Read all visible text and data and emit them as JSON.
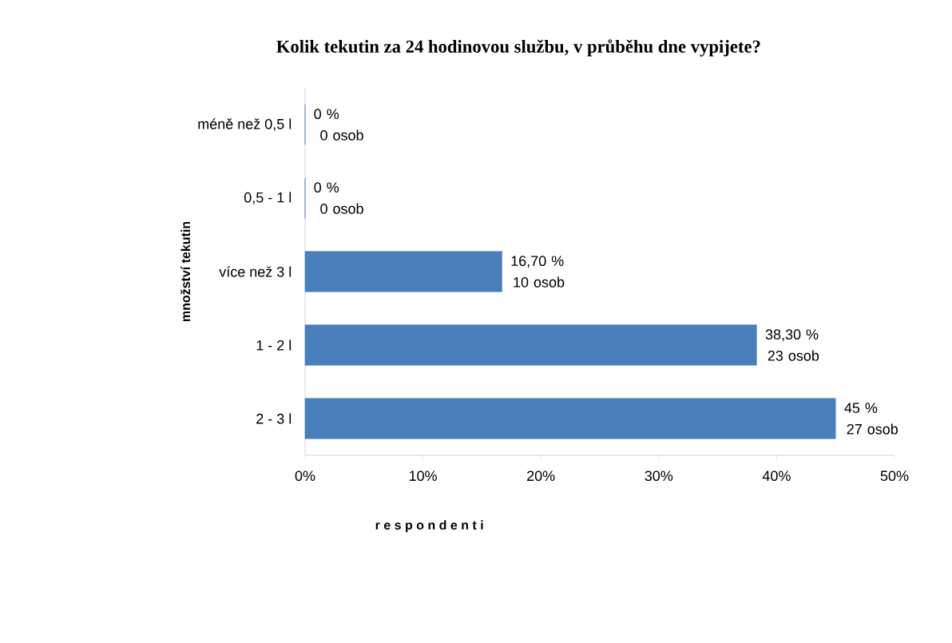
{
  "chart_data": {
    "type": "bar",
    "orientation": "horizontal",
    "title": "Kolik tekutin za 24 hodinovou službu, v průběhu dne vypijete?",
    "xlabel": "r e s p o n d e n t i",
    "ylabel": "množství tekutin",
    "categories": [
      "méně než 0,5 l",
      "0,5 - 1 l",
      "více než 3 l",
      "1 - 2 l",
      "2 - 3 l"
    ],
    "values": [
      0,
      0,
      16.7,
      38.3,
      45
    ],
    "value_labels": [
      "0 % 0 osob",
      "0 % 0 osob",
      "16,70 % 10 osob",
      "38,30 % 23 osob",
      "45 % 27 osob"
    ],
    "color": "#4a7ebb",
    "xlim": [
      0,
      50
    ],
    "xticks": [
      {
        "value": 0,
        "label": "0%"
      },
      {
        "value": 10,
        "label": "10%"
      },
      {
        "value": 20,
        "label": "20%"
      },
      {
        "value": 30,
        "label": "30%"
      },
      {
        "value": 40,
        "label": "40%"
      },
      {
        "value": 50,
        "label": "50%"
      }
    ],
    "grid": false
  }
}
